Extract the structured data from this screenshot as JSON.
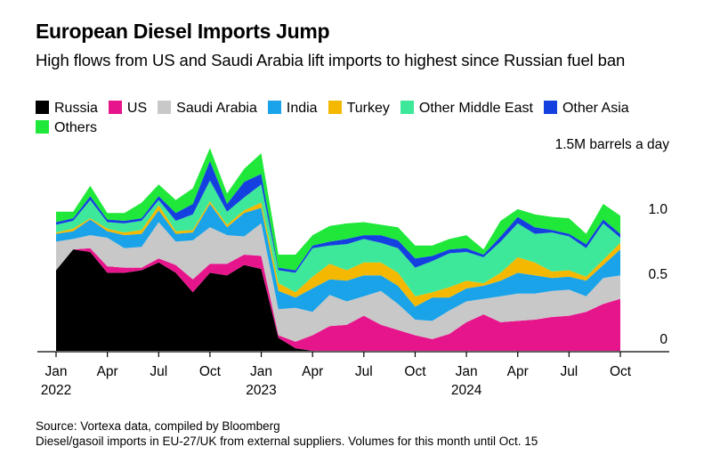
{
  "header": {
    "title": "European Diesel Imports Jump",
    "subtitle": "High flows from US and Saudi Arabia lift imports to highest since Russian fuel ban"
  },
  "footer": {
    "source": "Source: Vortexa data, compiled by Bloomberg",
    "note": "Diesel/gasoil imports in EU-27/UK from external suppliers. Volumes for this month until Oct. 15"
  },
  "chart_data": {
    "type": "area",
    "stacked": true,
    "unit_label": "1.5M barrels a day",
    "y_ticks": [
      {
        "value": 0,
        "label": "0"
      },
      {
        "value": 0.5,
        "label": "0.5"
      },
      {
        "value": 1.0,
        "label": "1.0"
      }
    ],
    "ylim": [
      0,
      1.6
    ],
    "x_ticks": [
      {
        "index": 0,
        "label": "Jan",
        "year": "2022"
      },
      {
        "index": 3,
        "label": "Apr"
      },
      {
        "index": 6,
        "label": "Jul"
      },
      {
        "index": 9,
        "label": "Oct"
      },
      {
        "index": 12,
        "label": "Jan",
        "year": "2023"
      },
      {
        "index": 15,
        "label": "Apr"
      },
      {
        "index": 18,
        "label": "Jul"
      },
      {
        "index": 21,
        "label": "Oct"
      },
      {
        "index": 24,
        "label": "Jan",
        "year": "2024"
      },
      {
        "index": 27,
        "label": "Apr"
      },
      {
        "index": 30,
        "label": "Jul"
      },
      {
        "index": 33,
        "label": "Oct"
      }
    ],
    "x": [
      "2022-01",
      "2022-02",
      "2022-03",
      "2022-04",
      "2022-05",
      "2022-06",
      "2022-07",
      "2022-08",
      "2022-09",
      "2022-10",
      "2022-11",
      "2022-12",
      "2023-01",
      "2023-02",
      "2023-03",
      "2023-04",
      "2023-05",
      "2023-06",
      "2023-07",
      "2023-08",
      "2023-09",
      "2023-10",
      "2023-11",
      "2023-12",
      "2024-01",
      "2024-02",
      "2024-03",
      "2024-04",
      "2024-05",
      "2024-06",
      "2024-07",
      "2024-08",
      "2024-09",
      "2024-10"
    ],
    "series": [
      {
        "name": "Russia",
        "color": "#000000",
        "values": [
          0.62,
          0.78,
          0.76,
          0.6,
          0.6,
          0.62,
          0.68,
          0.6,
          0.45,
          0.6,
          0.58,
          0.66,
          0.63,
          0.1,
          0.02,
          0,
          0,
          0,
          0,
          0,
          0,
          0,
          0,
          0,
          0,
          0,
          0,
          0,
          0,
          0,
          0,
          0,
          0,
          0
        ]
      },
      {
        "name": "US",
        "color": "#e6158c",
        "values": [
          0,
          0,
          0.03,
          0.05,
          0.04,
          0.02,
          0.03,
          0.06,
          0.1,
          0.07,
          0.09,
          0.08,
          0.1,
          0.02,
          0.05,
          0.12,
          0.19,
          0.2,
          0.27,
          0.2,
          0.16,
          0.12,
          0.09,
          0.13,
          0.22,
          0.28,
          0.22,
          0.23,
          0.24,
          0.26,
          0.27,
          0.3,
          0.36,
          0.4
        ]
      },
      {
        "name": "Saudi Arabia",
        "color": "#c8c8c8",
        "values": [
          0.22,
          0.08,
          0.1,
          0.22,
          0.15,
          0.16,
          0.28,
          0.18,
          0.3,
          0.28,
          0.22,
          0.14,
          0.25,
          0.2,
          0.26,
          0.18,
          0.24,
          0.18,
          0.15,
          0.26,
          0.2,
          0.12,
          0.14,
          0.18,
          0.16,
          0.12,
          0.2,
          0.21,
          0.2,
          0.2,
          0.2,
          0.12,
          0.2,
          0.18
        ]
      },
      {
        "name": "India",
        "color": "#1aa3e8",
        "values": [
          0.06,
          0.06,
          0.12,
          0.05,
          0.1,
          0.1,
          0.09,
          0.06,
          0.06,
          0.18,
          0.06,
          0.18,
          0.12,
          0.14,
          0.08,
          0.18,
          0.12,
          0.16,
          0.16,
          0.12,
          0.14,
          0.1,
          0.18,
          0.1,
          0.1,
          0.1,
          0.12,
          0.16,
          0.14,
          0.1,
          0.1,
          0.12,
          0.1,
          0.2
        ]
      },
      {
        "name": "Turkey",
        "color": "#f5b800",
        "values": [
          0.01,
          0.02,
          0.01,
          0.02,
          0.02,
          0.03,
          0.04,
          0.02,
          0.02,
          0.02,
          0.02,
          0.02,
          0.04,
          0.06,
          0.04,
          0.09,
          0.12,
          0.08,
          0.1,
          0.1,
          0.1,
          0.08,
          0.04,
          0.08,
          0.06,
          0.02,
          0.06,
          0.12,
          0.1,
          0.05,
          0.05,
          0.03,
          0.04,
          0.05
        ]
      },
      {
        "name": "Other Middle East",
        "color": "#3ee89a",
        "values": [
          0.06,
          0.06,
          0.14,
          0.05,
          0.07,
          0.07,
          0.04,
          0.08,
          0.12,
          0.16,
          0.1,
          0.1,
          0.14,
          0.1,
          0.15,
          0.22,
          0.14,
          0.2,
          0.18,
          0.15,
          0.19,
          0.22,
          0.24,
          0.26,
          0.22,
          0.2,
          0.24,
          0.26,
          0.22,
          0.3,
          0.26,
          0.22,
          0.28,
          0.04
        ]
      },
      {
        "name": "Other Asia",
        "color": "#1440e0",
        "values": [
          0.02,
          0.02,
          0.03,
          0.02,
          0.02,
          0.02,
          0.03,
          0.06,
          0.08,
          0.15,
          0.06,
          0.12,
          0.08,
          0.02,
          0.02,
          0.02,
          0.03,
          0.04,
          0.03,
          0.06,
          0.06,
          0.07,
          0.04,
          0.03,
          0.03,
          0.02,
          0.04,
          0.05,
          0.05,
          0.02,
          0.02,
          0.03,
          0.03,
          0.03
        ]
      },
      {
        "name": "Others",
        "color": "#1fe83a",
        "values": [
          0.08,
          0.05,
          0.08,
          0.05,
          0.06,
          0.12,
          0.09,
          0.1,
          0.12,
          0.1,
          0.08,
          0.1,
          0.16,
          0.1,
          0.12,
          0.08,
          0.12,
          0.12,
          0.1,
          0.08,
          0.1,
          0.1,
          0.08,
          0.08,
          0.1,
          0.04,
          0.12,
          0.06,
          0.1,
          0.1,
          0.12,
          0.08,
          0.12,
          0.14
        ]
      }
    ]
  }
}
